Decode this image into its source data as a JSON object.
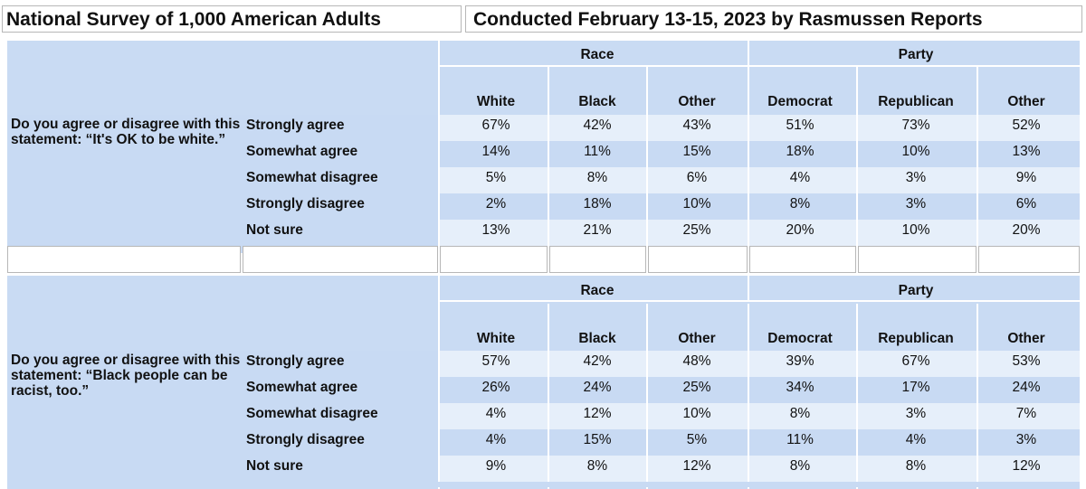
{
  "header": {
    "left": "National Survey of 1,000 American Adults",
    "right": "Conducted February 13-15, 2023 by Rasmussen Reports"
  },
  "colors": {
    "header_blue": "#c9dbf3",
    "row_light": "#e6effa",
    "row_dark": "#c8daf3",
    "border": "#b7b7b7"
  },
  "chart_data": {
    "type": "table",
    "groups": [
      "Race",
      "Party"
    ],
    "columns": [
      "White",
      "Black",
      "Other",
      "Democrat",
      "Republican",
      "Other"
    ],
    "responses": [
      "Strongly agree",
      "Somewhat agree",
      "Somewhat disagree",
      "Strongly disagree",
      "Not sure"
    ],
    "questions": [
      {
        "text": "Do you agree or disagree with this statement: “It's OK to be white.”",
        "rows": [
          [
            "67%",
            "42%",
            "43%",
            "51%",
            "73%",
            "52%"
          ],
          [
            "14%",
            "11%",
            "15%",
            "18%",
            "10%",
            "13%"
          ],
          [
            "5%",
            "8%",
            "6%",
            "4%",
            "3%",
            "9%"
          ],
          [
            "2%",
            "18%",
            "10%",
            "8%",
            "3%",
            "6%"
          ],
          [
            "13%",
            "21%",
            "25%",
            "20%",
            "10%",
            "20%"
          ]
        ]
      },
      {
        "text": "Do you agree or disagree with this statement: “Black people can be racist, too.”",
        "rows": [
          [
            "57%",
            "42%",
            "48%",
            "39%",
            "67%",
            "53%"
          ],
          [
            "26%",
            "24%",
            "25%",
            "34%",
            "17%",
            "24%"
          ],
          [
            "4%",
            "12%",
            "10%",
            "8%",
            "3%",
            "7%"
          ],
          [
            "4%",
            "15%",
            "5%",
            "11%",
            "4%",
            "3%"
          ],
          [
            "9%",
            "8%",
            "12%",
            "8%",
            "8%",
            "12%"
          ]
        ]
      }
    ]
  }
}
